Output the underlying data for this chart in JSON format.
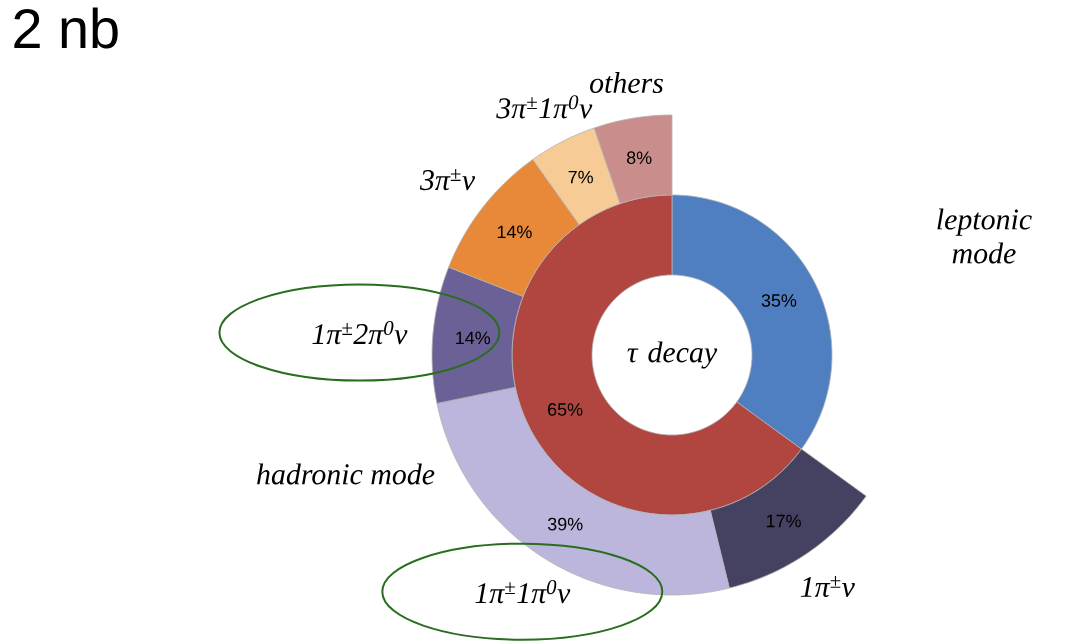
{
  "chart_data": [
    {
      "type": "donut",
      "title": "τ decay",
      "categories": [
        "leptonic mode",
        "hadronic mode"
      ],
      "values": [
        35,
        65
      ],
      "colors": [
        "#4f7fc0",
        "#b0463f"
      ],
      "value_labels": [
        "35%",
        "65%"
      ],
      "annotations": [
        "2 nb"
      ]
    },
    {
      "type": "donut",
      "categories": [
        "1π$^{±}$ν",
        "1π$^{±}$1π$^{0}$ν",
        "1π$^{±}$2π$^{0}$ν",
        "3π$^{±}$ν",
        "3π$^{±}$1π$^{0}$ν",
        "others"
      ],
      "values": [
        17,
        39,
        14,
        14,
        7,
        8
      ],
      "colors": [
        "#454160",
        "#bcb6dc",
        "#6c6196",
        "#e8893a",
        "#f6cb96",
        "#c98d8c"
      ],
      "value_labels": [
        "17%",
        "39%",
        "14%",
        "14%",
        "7%",
        "8%"
      ]
    }
  ]
}
